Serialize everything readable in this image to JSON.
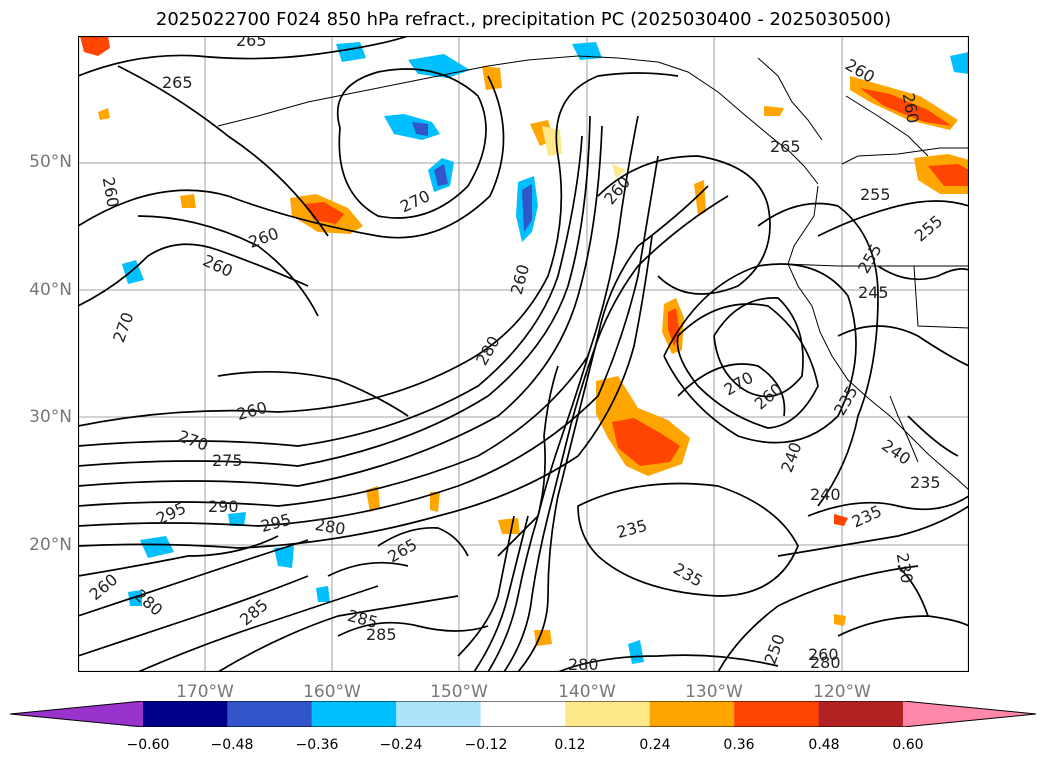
{
  "title": "2025022700 F024 850 hPa refract., precipitation PC (2025030400 - 2025030500)",
  "lat_labels": [
    "50°N",
    "40°N",
    "30°N",
    "20°N"
  ],
  "lon_labels": [
    "170°W",
    "160°W",
    "150°W",
    "140°W",
    "130°W",
    "120°W"
  ],
  "colorbar": {
    "colors": [
      "#9933cc",
      "#00008b",
      "#3355cc",
      "#00bfff",
      "#aee4fb",
      "#ffffff",
      "#ffe88a",
      "#ffa500",
      "#ff4500",
      "#b22222",
      "#ff88aa"
    ],
    "ticks": [
      "−0.60",
      "−0.48",
      "−0.36",
      "−0.24",
      "−0.12",
      "0.12",
      "0.24",
      "0.36",
      "0.48",
      "0.60"
    ]
  },
  "contour_labels": [
    "265",
    "265",
    "260",
    "270",
    "260",
    "260",
    "270",
    "260",
    "260",
    "260",
    "260",
    "270",
    "275",
    "280",
    "290",
    "295",
    "295",
    "280",
    "265",
    "285",
    "285",
    "285",
    "280",
    "235",
    "235",
    "240",
    "240",
    "235",
    "240",
    "235",
    "265",
    "270",
    "255",
    "255",
    "245",
    "260",
    "230",
    "250",
    "280",
    "260",
    "255",
    "235",
    "280",
    "260",
    "260"
  ]
}
